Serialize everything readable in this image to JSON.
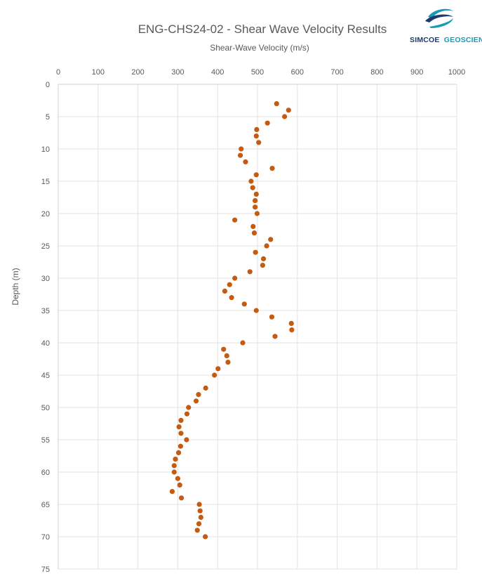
{
  "logo": {
    "word1": "SIMCOE",
    "word2": "GEOSCIENCE",
    "colors": {
      "navy": "#1f3a6e",
      "teal": "#1a9ab4"
    }
  },
  "chart_data": {
    "type": "scatter",
    "title": "ENG-CHS24-02 - Shear Wave Velocity Results",
    "xlabel": "Shear-Wave Velocity (m/s)",
    "ylabel": "Depth (m)",
    "xlim": [
      0,
      1000
    ],
    "ylim": [
      0,
      75
    ],
    "y_inverted": true,
    "x_axis_position": "top",
    "x_ticks": [
      0,
      100,
      200,
      300,
      400,
      500,
      600,
      700,
      800,
      900,
      1000
    ],
    "y_ticks": [
      0,
      5,
      10,
      15,
      20,
      25,
      30,
      35,
      40,
      45,
      50,
      55,
      60,
      65,
      70,
      75
    ],
    "grid": true,
    "marker_color": "#c55a11",
    "points": [
      [
        548,
        3
      ],
      [
        578,
        4
      ],
      [
        568,
        5
      ],
      [
        525,
        6
      ],
      [
        498,
        7
      ],
      [
        497,
        8
      ],
      [
        503,
        9
      ],
      [
        459,
        10
      ],
      [
        457,
        11
      ],
      [
        470,
        12
      ],
      [
        537,
        13
      ],
      [
        497,
        14
      ],
      [
        484,
        15
      ],
      [
        488,
        16
      ],
      [
        497,
        17
      ],
      [
        494,
        18
      ],
      [
        494,
        19
      ],
      [
        499,
        20
      ],
      [
        443,
        21
      ],
      [
        489,
        22
      ],
      [
        492,
        23
      ],
      [
        533,
        24
      ],
      [
        523,
        25
      ],
      [
        495,
        26
      ],
      [
        515,
        27
      ],
      [
        513,
        28
      ],
      [
        481,
        29
      ],
      [
        443,
        30
      ],
      [
        430,
        31
      ],
      [
        418,
        32
      ],
      [
        435,
        33
      ],
      [
        467,
        34
      ],
      [
        497,
        35
      ],
      [
        536,
        36
      ],
      [
        585,
        37
      ],
      [
        586,
        38
      ],
      [
        544,
        39
      ],
      [
        463,
        40
      ],
      [
        415,
        41
      ],
      [
        423,
        42
      ],
      [
        426,
        43
      ],
      [
        401,
        44
      ],
      [
        392,
        45
      ],
      [
        370,
        47
      ],
      [
        352,
        48
      ],
      [
        346,
        49
      ],
      [
        327,
        50
      ],
      [
        323,
        51
      ],
      [
        308,
        52
      ],
      [
        303,
        53
      ],
      [
        308,
        54
      ],
      [
        322,
        55
      ],
      [
        307,
        56
      ],
      [
        302,
        57
      ],
      [
        294,
        58
      ],
      [
        291,
        59
      ],
      [
        291,
        60
      ],
      [
        300,
        61
      ],
      [
        305,
        62
      ],
      [
        286,
        63
      ],
      [
        309,
        64
      ],
      [
        354,
        65
      ],
      [
        356,
        66
      ],
      [
        358,
        67
      ],
      [
        353,
        68
      ],
      [
        349,
        69
      ],
      [
        369,
        70
      ]
    ]
  }
}
